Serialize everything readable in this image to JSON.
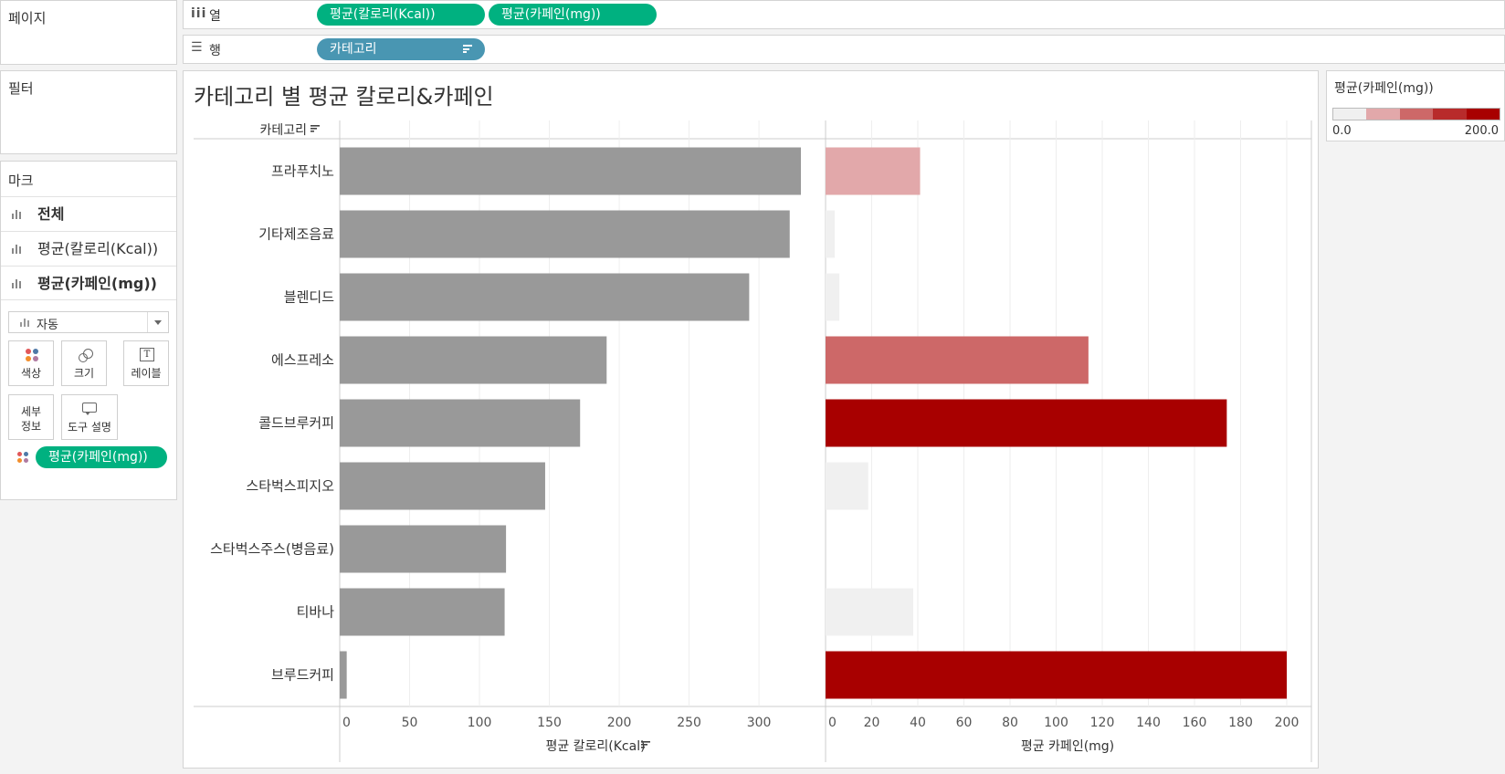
{
  "left_panel": {
    "pages_title": "페이지",
    "filters_title": "필터",
    "marks_title": "마크",
    "mark_layers": [
      {
        "label": "전체",
        "bold": true
      },
      {
        "label": "평균(칼로리(Kcal))",
        "bold": false
      },
      {
        "label": "평균(카페인(mg))",
        "bold": true
      }
    ],
    "mark_type": "자동",
    "cards": {
      "color": "색상",
      "size": "크기",
      "label": "레이블",
      "detail_line1": "세부",
      "detail_line2": "정보",
      "tooltip": "도구 설명",
      "label_icon_text": "T"
    },
    "color_pill": "평균(카페인(mg))"
  },
  "shelves": {
    "columns_label": "열",
    "columns_pills": [
      "평균(칼로리(Kcal))",
      "평균(카페인(mg))"
    ],
    "rows_label": "행",
    "rows_pills": [
      "카테고리"
    ]
  },
  "legend": {
    "title": "평균(카페인(mg))",
    "min_label": "0.0",
    "max_label": "200.0",
    "colors": [
      "#f0f0f0",
      "#e2a8aa",
      "#cd6868",
      "#b82b2b",
      "#a80000"
    ]
  },
  "chart_data": {
    "type": "bar",
    "orientation": "horizontal",
    "title": "카테고리 별 평균 칼로리&카페인",
    "row_header": "카테고리",
    "categories": [
      "프라푸치노",
      "기타제조음료",
      "블렌디드",
      "에스프레소",
      "콜드브루커피",
      "스타벅스피지오",
      "스타벅스주스(병음료)",
      "티바나",
      "브루드커피"
    ],
    "panels": [
      {
        "measure": "평균 칼로리(Kcal)",
        "values": [
          330,
          322,
          293,
          191,
          172,
          147,
          119,
          118,
          5
        ],
        "xlim": [
          0,
          350
        ],
        "ticks": [
          0,
          50,
          100,
          150,
          200,
          250,
          300
        ],
        "bar_color": "#999999"
      },
      {
        "measure": "평균 카페인(mg)",
        "values": [
          41,
          4,
          6,
          114,
          174,
          18.5,
          0,
          38,
          200
        ],
        "xlim": [
          0,
          210
        ],
        "ticks": [
          0,
          20,
          40,
          60,
          80,
          100,
          120,
          140,
          160,
          180,
          200
        ],
        "color_scale": [
          "#f0f0f0",
          "#e2a8aa",
          "#cd6868",
          "#b82b2b",
          "#a80000"
        ],
        "color_range": [
          0,
          200
        ]
      }
    ],
    "grid": true
  }
}
